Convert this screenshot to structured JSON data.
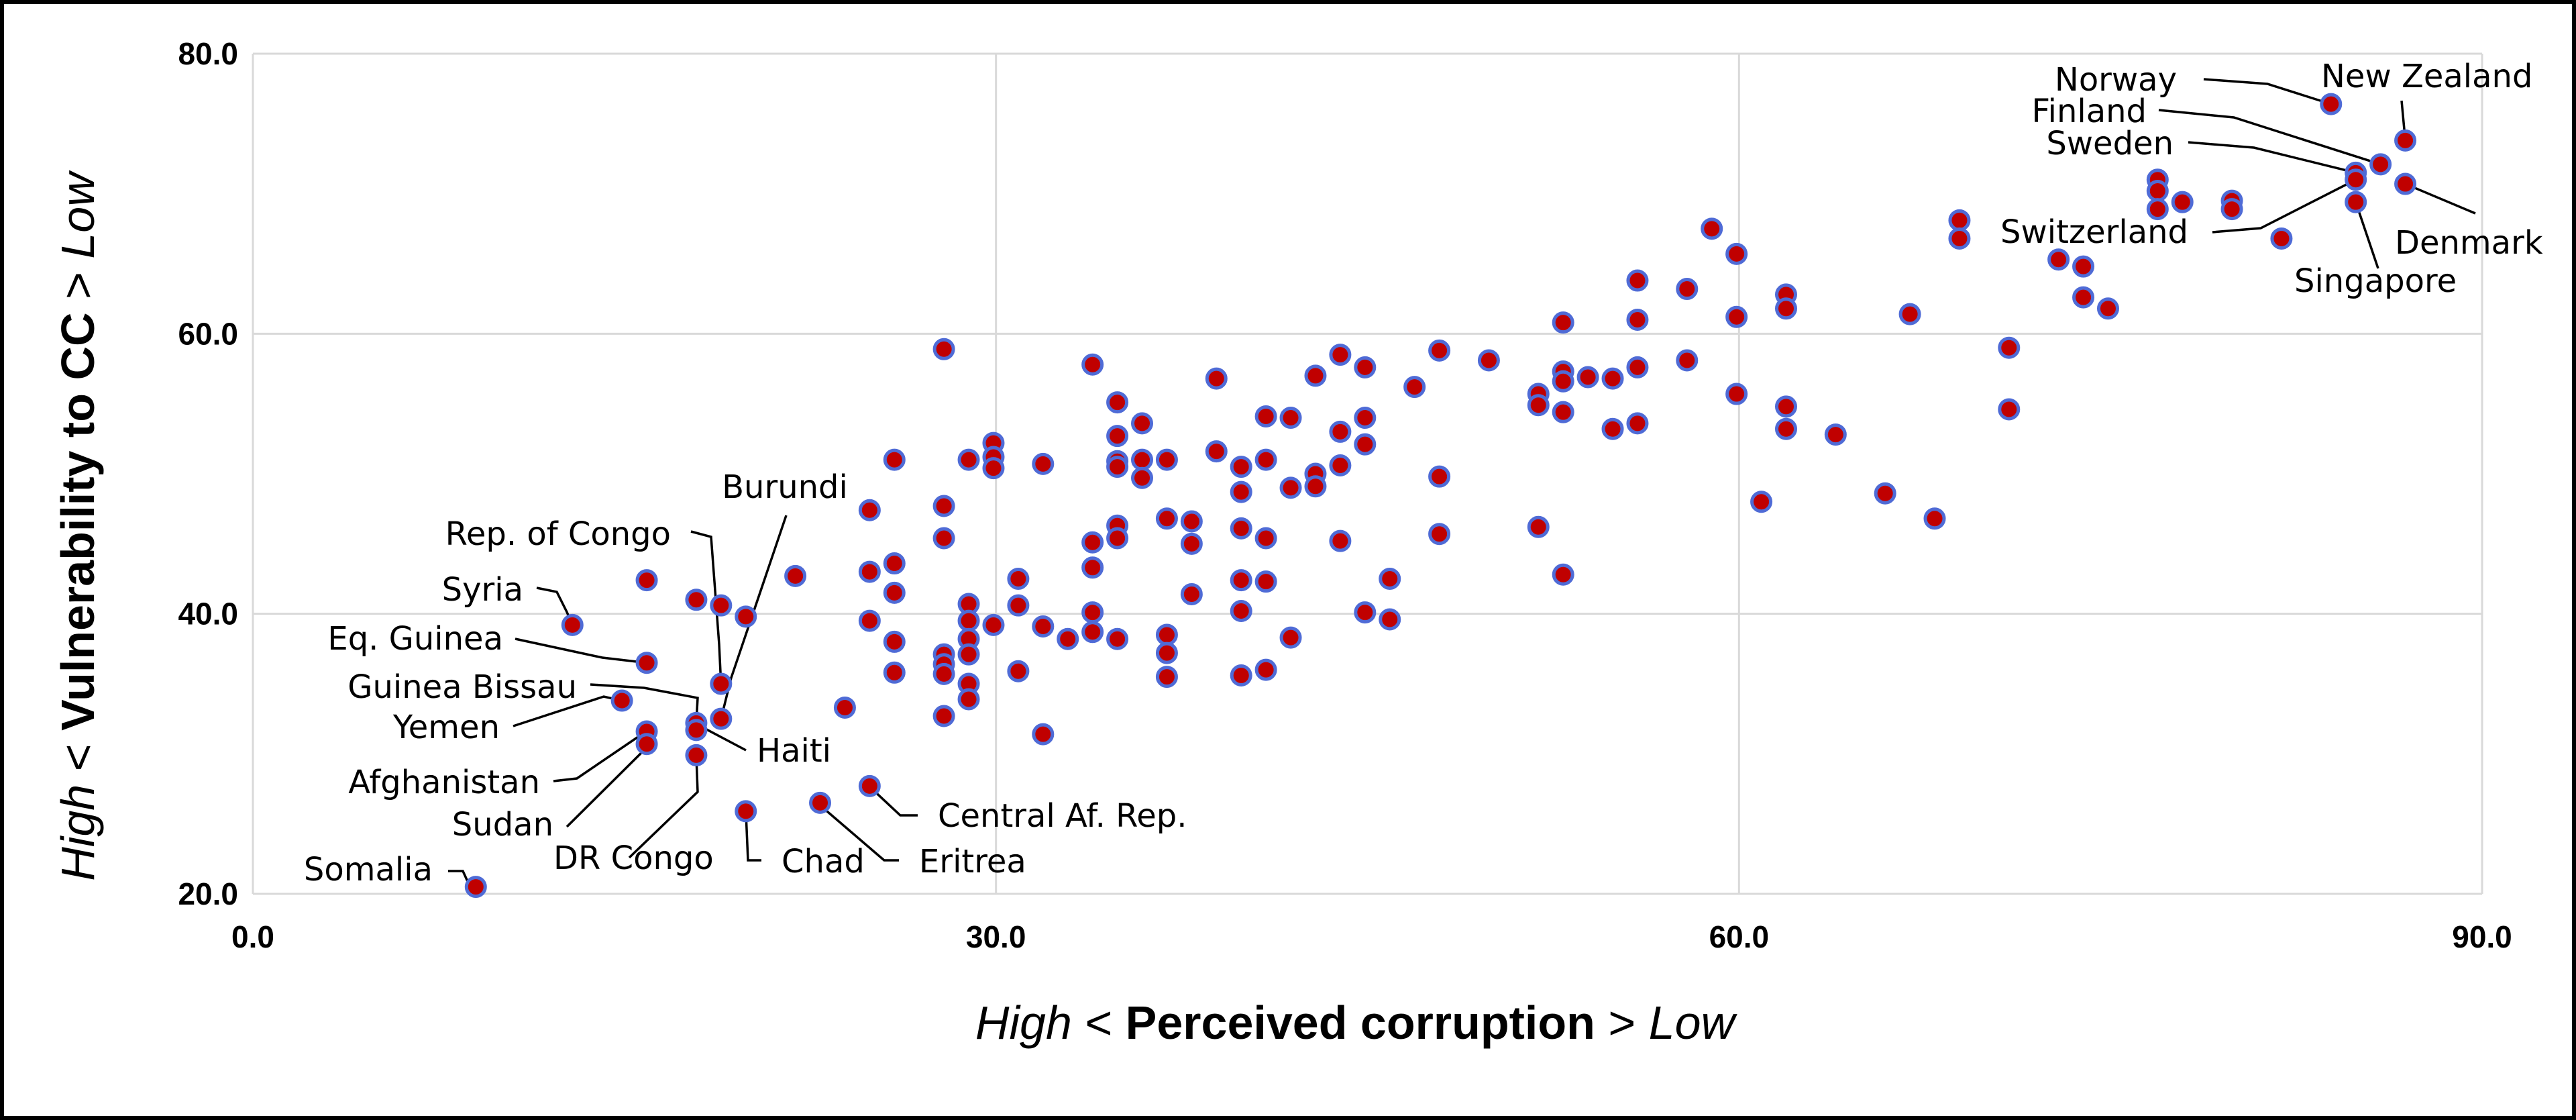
{
  "chart_data": {
    "type": "scatter",
    "title": "",
    "xlabel": {
      "prefix": "High",
      "lt": " < ",
      "main": "Perceived corruption",
      "gt": " > ",
      "suffix": "Low"
    },
    "ylabel": {
      "prefix": "High",
      "lt": " < ",
      "main": "Vulnerability to CC",
      "gt": " > ",
      "suffix": "Low"
    },
    "xlim": [
      0,
      90
    ],
    "ylim": [
      20,
      80
    ],
    "xticks": [
      0,
      30,
      60,
      90
    ],
    "yticks": [
      20,
      40,
      60,
      80
    ],
    "xtick_labels": [
      "0.0",
      "30.0",
      "60.0",
      "90.0"
    ],
    "ytick_labels": [
      "20.0",
      "40.0",
      "60.0",
      "80.0"
    ],
    "grid": true,
    "legend": "none",
    "colors": {
      "marker_fill": "#c00000",
      "marker_edge": "#4f6bd6",
      "grid": "#d9d9d9"
    },
    "points": [
      [
        9,
        20.5
      ],
      [
        12.9,
        39.2
      ],
      [
        14.9,
        33.8
      ],
      [
        15.9,
        36.5
      ],
      [
        15.9,
        31.6
      ],
      [
        15.9,
        30.7
      ],
      [
        15.9,
        42.4
      ],
      [
        17.9,
        41
      ],
      [
        17.9,
        32.2
      ],
      [
        17.9,
        31.7
      ],
      [
        17.9,
        29.9
      ],
      [
        18.9,
        40.6
      ],
      [
        18.9,
        35
      ],
      [
        18.9,
        32.5
      ],
      [
        19.9,
        39.8
      ],
      [
        19.9,
        25.9
      ],
      [
        21.9,
        42.7
      ],
      [
        22.9,
        26.5
      ],
      [
        23.9,
        33.3
      ],
      [
        24.9,
        47.4
      ],
      [
        24.9,
        43
      ],
      [
        24.9,
        39.5
      ],
      [
        24.9,
        27.7
      ],
      [
        25.9,
        51
      ],
      [
        25.9,
        43.6
      ],
      [
        25.9,
        41.5
      ],
      [
        25.9,
        38
      ],
      [
        25.9,
        35.8
      ],
      [
        27.9,
        58.9
      ],
      [
        27.9,
        47.7
      ],
      [
        27.9,
        45.4
      ],
      [
        27.9,
        37.1
      ],
      [
        27.9,
        36.4
      ],
      [
        27.9,
        35.7
      ],
      [
        27.9,
        32.7
      ],
      [
        28.9,
        51
      ],
      [
        28.9,
        40.7
      ],
      [
        28.9,
        39.5
      ],
      [
        28.9,
        38.2
      ],
      [
        28.9,
        37.1
      ],
      [
        28.9,
        35
      ],
      [
        28.9,
        33.9
      ],
      [
        29.9,
        52.2
      ],
      [
        29.9,
        51.2
      ],
      [
        29.9,
        50.4
      ],
      [
        29.9,
        39.2
      ],
      [
        30.9,
        42.5
      ],
      [
        30.9,
        40.6
      ],
      [
        30.9,
        35.9
      ],
      [
        31.9,
        50.7
      ],
      [
        31.9,
        39.1
      ],
      [
        31.9,
        31.4
      ],
      [
        32.9,
        38.2
      ],
      [
        33.9,
        57.8
      ],
      [
        33.9,
        45.1
      ],
      [
        33.9,
        43.3
      ],
      [
        33.9,
        40.1
      ],
      [
        33.9,
        38.7
      ],
      [
        34.9,
        55.1
      ],
      [
        34.9,
        52.7
      ],
      [
        34.9,
        50.9
      ],
      [
        34.9,
        50.5
      ],
      [
        34.9,
        46.3
      ],
      [
        34.9,
        45.4
      ],
      [
        34.9,
        38.2
      ],
      [
        35.9,
        53.6
      ],
      [
        35.9,
        51
      ],
      [
        35.9,
        49.7
      ],
      [
        36.9,
        51
      ],
      [
        36.9,
        46.8
      ],
      [
        36.9,
        38.5
      ],
      [
        36.9,
        37.2
      ],
      [
        36.9,
        35.5
      ],
      [
        37.9,
        46.6
      ],
      [
        37.9,
        45
      ],
      [
        37.9,
        41.4
      ],
      [
        38.9,
        56.8
      ],
      [
        38.9,
        51.6
      ],
      [
        39.9,
        50.5
      ],
      [
        39.9,
        48.7
      ],
      [
        39.9,
        46.1
      ],
      [
        39.9,
        42.4
      ],
      [
        39.9,
        40.2
      ],
      [
        39.9,
        35.6
      ],
      [
        40.9,
        54.1
      ],
      [
        40.9,
        51
      ],
      [
        40.9,
        45.4
      ],
      [
        40.9,
        42.3
      ],
      [
        40.9,
        36
      ],
      [
        41.9,
        54
      ],
      [
        41.9,
        49
      ],
      [
        41.9,
        38.3
      ],
      [
        42.9,
        57
      ],
      [
        42.9,
        50
      ],
      [
        42.9,
        49.1
      ],
      [
        43.9,
        58.5
      ],
      [
        43.9,
        53
      ],
      [
        43.9,
        50.6
      ],
      [
        43.9,
        45.2
      ],
      [
        44.9,
        57.6
      ],
      [
        44.9,
        54
      ],
      [
        44.9,
        52.1
      ],
      [
        44.9,
        40.1
      ],
      [
        45.9,
        42.5
      ],
      [
        45.9,
        39.6
      ],
      [
        46.9,
        56.2
      ],
      [
        47.9,
        58.8
      ],
      [
        47.9,
        49.8
      ],
      [
        47.9,
        45.7
      ],
      [
        49.9,
        58.1
      ],
      [
        51.9,
        55.7
      ],
      [
        51.9,
        54.9
      ],
      [
        51.9,
        46.2
      ],
      [
        52.9,
        60.8
      ],
      [
        52.9,
        57.3
      ],
      [
        52.9,
        56.6
      ],
      [
        52.9,
        54.4
      ],
      [
        52.9,
        42.8
      ],
      [
        53.9,
        56.9
      ],
      [
        54.9,
        56.8
      ],
      [
        54.9,
        53.2
      ],
      [
        55.9,
        63.8
      ],
      [
        55.9,
        61
      ],
      [
        55.9,
        57.6
      ],
      [
        55.9,
        53.6
      ],
      [
        57.9,
        63.2
      ],
      [
        57.9,
        58.1
      ],
      [
        58.9,
        67.5
      ],
      [
        59.9,
        65.7
      ],
      [
        59.9,
        61.2
      ],
      [
        59.9,
        55.7
      ],
      [
        60.9,
        48
      ],
      [
        61.9,
        62.8
      ],
      [
        61.9,
        61.8
      ],
      [
        61.9,
        54.8
      ],
      [
        61.9,
        53.2
      ],
      [
        63.9,
        52.8
      ],
      [
        65.9,
        48.6
      ],
      [
        66.9,
        61.4
      ],
      [
        67.9,
        46.8
      ],
      [
        68.9,
        68.1
      ],
      [
        68.9,
        66.8
      ],
      [
        70.9,
        59
      ],
      [
        70.9,
        54.6
      ],
      [
        72.9,
        65.3
      ],
      [
        73.9,
        64.8
      ],
      [
        73.9,
        62.6
      ],
      [
        74.9,
        61.8
      ],
      [
        76.9,
        71
      ],
      [
        76.9,
        70.2
      ],
      [
        76.9,
        68.9
      ],
      [
        77.9,
        69.4
      ],
      [
        79.9,
        69.5
      ],
      [
        79.9,
        68.9
      ],
      [
        81.9,
        66.8
      ],
      [
        83.9,
        76.4
      ],
      [
        84.9,
        71.5
      ],
      [
        84.9,
        71
      ],
      [
        84.9,
        69.4
      ],
      [
        85.9,
        72.1
      ],
      [
        86.9,
        73.8
      ],
      [
        86.9,
        70.7
      ]
    ],
    "annotations": [
      {
        "text": "Norway",
        "point": [
          83.9,
          76.4
        ]
      },
      {
        "text": "New Zealand",
        "point": [
          86.9,
          73.8
        ]
      },
      {
        "text": "Finland",
        "point": [
          85.9,
          72.1
        ]
      },
      {
        "text": "Sweden",
        "point": [
          84.9,
          71.5
        ]
      },
      {
        "text": "Denmark",
        "point": [
          86.9,
          70.7
        ]
      },
      {
        "text": "Switzerland",
        "point": [
          84.9,
          71
        ]
      },
      {
        "text": "Singapore",
        "point": [
          84.9,
          69.4
        ]
      },
      {
        "text": "Burundi",
        "point": [
          18.9,
          32.5
        ]
      },
      {
        "text": "Rep. of Congo",
        "point": [
          18.9,
          35
        ]
      },
      {
        "text": "Syria",
        "point": [
          12.9,
          39.2
        ]
      },
      {
        "text": "Eq. Guinea",
        "point": [
          15.9,
          36.5
        ]
      },
      {
        "text": "Guinea Bissau",
        "point": [
          17.9,
          32.2
        ]
      },
      {
        "text": "Yemen",
        "point": [
          14.9,
          33.8
        ]
      },
      {
        "text": "Haiti",
        "point": [
          17.9,
          31.7
        ]
      },
      {
        "text": "Afghanistan",
        "point": [
          15.9,
          31.6
        ]
      },
      {
        "text": "Sudan",
        "point": [
          15.9,
          30.7
        ]
      },
      {
        "text": "DR Congo",
        "point": [
          17.9,
          29.9
        ]
      },
      {
        "text": "Chad",
        "point": [
          19.9,
          25.9
        ]
      },
      {
        "text": "Eritrea",
        "point": [
          22.9,
          26.5
        ]
      },
      {
        "text": "Central Af. Rep.",
        "point": [
          24.9,
          27.7
        ]
      },
      {
        "text": "Somalia",
        "point": [
          9,
          20.5
        ]
      }
    ]
  }
}
